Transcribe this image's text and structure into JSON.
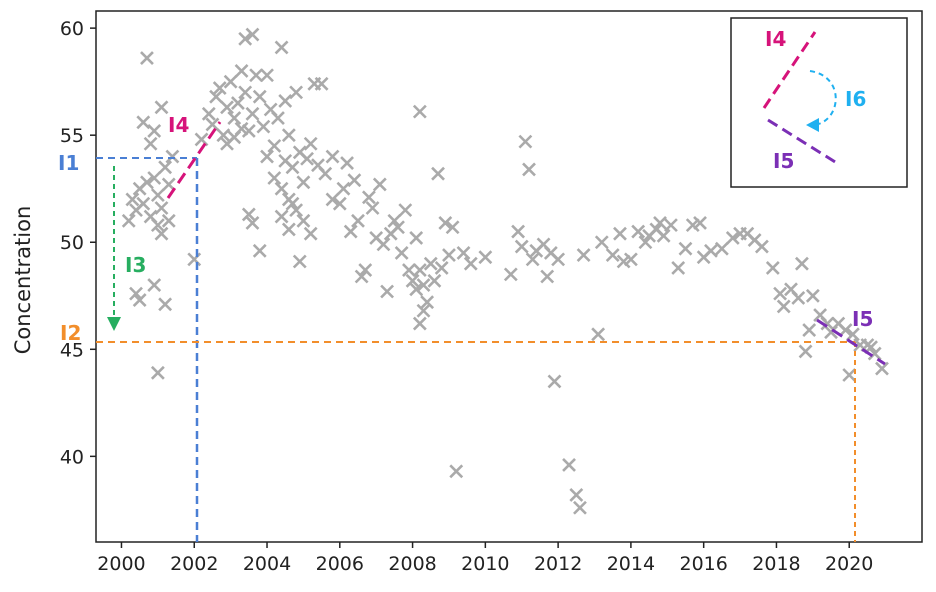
{
  "chart_data": {
    "type": "scatter",
    "title": "",
    "xlabel": "",
    "ylabel": "Concentration",
    "xlim": [
      1999.3,
      2022.0
    ],
    "ylim": [
      36.0,
      60.8
    ],
    "xticks": [
      2000,
      2002,
      2004,
      2006,
      2008,
      2010,
      2012,
      2014,
      2016,
      2018,
      2020
    ],
    "yticks": [
      40,
      45,
      50,
      55,
      60
    ],
    "grid": false,
    "marker": "x",
    "marker_color": "#aaaaaa",
    "series": [
      {
        "points": [
          [
            2000.2,
            51.0
          ],
          [
            2000.3,
            52.0
          ],
          [
            2000.4,
            51.5
          ],
          [
            2000.5,
            52.5
          ],
          [
            2000.6,
            51.8
          ],
          [
            2000.7,
            52.8
          ],
          [
            2000.8,
            51.2
          ],
          [
            2000.9,
            53.0
          ],
          [
            2001.0,
            52.2
          ],
          [
            2001.1,
            51.6
          ],
          [
            2001.2,
            53.5
          ],
          [
            2001.3,
            52.7
          ],
          [
            2001.4,
            54.0
          ],
          [
            2000.6,
            55.6
          ],
          [
            2000.7,
            58.6
          ],
          [
            2000.9,
            55.2
          ],
          [
            2001.1,
            56.3
          ],
          [
            2001.0,
            43.9
          ],
          [
            2001.2,
            47.1
          ],
          [
            2000.5,
            47.3
          ],
          [
            2000.4,
            47.6
          ],
          [
            2000.9,
            48.0
          ],
          [
            2001.1,
            50.4
          ],
          [
            2000.8,
            54.6
          ],
          [
            2001.0,
            50.8
          ],
          [
            2001.3,
            51.0
          ],
          [
            2002.0,
            49.2
          ],
          [
            2002.2,
            54.8
          ],
          [
            2002.4,
            56.0
          ],
          [
            2002.5,
            55.5
          ],
          [
            2002.6,
            56.8
          ],
          [
            2002.7,
            57.2
          ],
          [
            2002.8,
            55.0
          ],
          [
            2002.9,
            56.3
          ],
          [
            2003.0,
            57.5
          ],
          [
            2003.1,
            55.8
          ],
          [
            2003.2,
            56.5
          ],
          [
            2003.3,
            58.0
          ],
          [
            2003.4,
            57.0
          ],
          [
            2003.5,
            55.2
          ],
          [
            2003.6,
            56.0
          ],
          [
            2003.7,
            57.8
          ],
          [
            2003.4,
            59.5
          ],
          [
            2003.6,
            59.7
          ],
          [
            2003.8,
            56.8
          ],
          [
            2003.9,
            55.4
          ],
          [
            2004.0,
            57.8
          ],
          [
            2004.1,
            56.2
          ],
          [
            2004.2,
            54.5
          ],
          [
            2004.3,
            55.8
          ],
          [
            2004.4,
            59.1
          ],
          [
            2004.5,
            56.6
          ],
          [
            2004.6,
            55.0
          ],
          [
            2003.5,
            51.3
          ],
          [
            2003.6,
            50.9
          ],
          [
            2003.8,
            49.6
          ],
          [
            2002.9,
            54.6
          ],
          [
            2003.1,
            54.9
          ],
          [
            2003.3,
            55.3
          ],
          [
            2004.0,
            54.0
          ],
          [
            2004.2,
            53.0
          ],
          [
            2004.4,
            52.5
          ],
          [
            2004.5,
            53.8
          ],
          [
            2004.6,
            52.0
          ],
          [
            2004.7,
            53.5
          ],
          [
            2004.8,
            51.5
          ],
          [
            2004.9,
            54.2
          ],
          [
            2005.0,
            52.8
          ],
          [
            2005.1,
            53.9
          ],
          [
            2005.2,
            54.6
          ],
          [
            2005.3,
            57.4
          ],
          [
            2005.4,
            53.6
          ],
          [
            2004.8,
            57.0
          ],
          [
            2005.5,
            57.4
          ],
          [
            2005.6,
            53.2
          ],
          [
            2005.8,
            54.0
          ],
          [
            2004.4,
            51.2
          ],
          [
            2004.6,
            50.6
          ],
          [
            2004.9,
            49.1
          ],
          [
            2005.2,
            50.4
          ],
          [
            2004.7,
            51.8
          ],
          [
            2005.0,
            51.0
          ],
          [
            2005.8,
            52.0
          ],
          [
            2006.0,
            51.8
          ],
          [
            2006.1,
            52.5
          ],
          [
            2006.2,
            53.7
          ],
          [
            2006.3,
            50.5
          ],
          [
            2006.4,
            52.9
          ],
          [
            2006.5,
            51.0
          ],
          [
            2006.6,
            48.4
          ],
          [
            2006.7,
            48.7
          ],
          [
            2006.8,
            52.1
          ],
          [
            2006.9,
            51.6
          ],
          [
            2007.0,
            50.2
          ],
          [
            2007.1,
            52.7
          ],
          [
            2007.2,
            49.9
          ],
          [
            2007.3,
            47.7
          ],
          [
            2007.4,
            50.4
          ],
          [
            2007.5,
            51.0
          ],
          [
            2007.6,
            50.7
          ],
          [
            2007.7,
            49.5
          ],
          [
            2007.8,
            51.5
          ],
          [
            2007.9,
            48.7
          ],
          [
            2008.0,
            48.2
          ],
          [
            2008.1,
            47.8
          ],
          [
            2008.2,
            48.7
          ],
          [
            2008.3,
            48.0
          ],
          [
            2008.4,
            47.2
          ],
          [
            2008.5,
            49.0
          ],
          [
            2008.2,
            46.2
          ],
          [
            2008.3,
            46.8
          ],
          [
            2008.1,
            50.2
          ],
          [
            2008.2,
            56.1
          ],
          [
            2008.6,
            48.2
          ],
          [
            2008.8,
            48.8
          ],
          [
            2008.7,
            53.2
          ],
          [
            2008.9,
            50.9
          ],
          [
            2009.0,
            49.4
          ],
          [
            2009.2,
            39.3
          ],
          [
            2009.1,
            50.7
          ],
          [
            2009.4,
            49.5
          ],
          [
            2009.6,
            49.0
          ],
          [
            2010.0,
            49.3
          ],
          [
            2010.7,
            48.5
          ],
          [
            2010.9,
            50.5
          ],
          [
            2011.0,
            49.8
          ],
          [
            2011.1,
            54.7
          ],
          [
            2011.2,
            53.4
          ],
          [
            2011.3,
            49.2
          ],
          [
            2011.4,
            49.6
          ],
          [
            2011.6,
            49.9
          ],
          [
            2011.7,
            48.4
          ],
          [
            2011.8,
            49.5
          ],
          [
            2011.9,
            43.5
          ],
          [
            2012.0,
            49.2
          ],
          [
            2012.3,
            39.6
          ],
          [
            2012.5,
            38.2
          ],
          [
            2012.6,
            37.6
          ],
          [
            2012.7,
            49.4
          ],
          [
            2013.1,
            45.7
          ],
          [
            2013.2,
            50.0
          ],
          [
            2013.5,
            49.4
          ],
          [
            2013.7,
            50.4
          ],
          [
            2013.8,
            49.1
          ],
          [
            2014.0,
            49.2
          ],
          [
            2014.2,
            50.5
          ],
          [
            2014.4,
            50.0
          ],
          [
            2014.5,
            50.3
          ],
          [
            2014.7,
            50.6
          ],
          [
            2014.8,
            50.9
          ],
          [
            2014.9,
            50.3
          ],
          [
            2015.1,
            50.8
          ],
          [
            2015.3,
            48.8
          ],
          [
            2015.5,
            49.7
          ],
          [
            2015.7,
            50.8
          ],
          [
            2015.9,
            50.9
          ],
          [
            2016.0,
            49.3
          ],
          [
            2016.2,
            49.6
          ],
          [
            2016.5,
            49.7
          ],
          [
            2016.8,
            50.2
          ],
          [
            2017.0,
            50.4
          ],
          [
            2017.2,
            50.4
          ],
          [
            2017.4,
            50.1
          ],
          [
            2017.6,
            49.8
          ],
          [
            2017.9,
            48.8
          ],
          [
            2018.1,
            47.6
          ],
          [
            2018.2,
            47.0
          ],
          [
            2018.4,
            47.8
          ],
          [
            2018.6,
            47.4
          ],
          [
            2018.7,
            49.0
          ],
          [
            2018.8,
            44.9
          ],
          [
            2018.9,
            45.9
          ],
          [
            2019.0,
            47.5
          ],
          [
            2019.2,
            46.6
          ],
          [
            2019.4,
            46.2
          ],
          [
            2019.5,
            45.8
          ],
          [
            2019.7,
            46.2
          ],
          [
            2019.9,
            45.9
          ],
          [
            2020.0,
            43.8
          ],
          [
            2020.1,
            45.7
          ],
          [
            2020.3,
            45.2
          ],
          [
            2020.5,
            45.2
          ],
          [
            2020.6,
            45.1
          ],
          [
            2020.7,
            44.8
          ],
          [
            2020.9,
            44.1
          ]
        ]
      }
    ],
    "annotations": [
      {
        "label": "I1",
        "color": "#4a7fd4",
        "note": "reference lines at x = 2002 and y = 54"
      },
      {
        "label": "I2",
        "color": "#f28e2b",
        "note": "reference lines at y = 45.7 and x = 2020"
      },
      {
        "label": "I3",
        "color": "#27ae60",
        "note": "downward arrow from 54 to 46.5"
      },
      {
        "label": "I4",
        "color": "#d6137a",
        "note": "rising trend segment"
      },
      {
        "label": "I5",
        "color": "#7b2fb5",
        "note": "falling trend segment"
      },
      {
        "label": "I6",
        "color": "#1fb0f0",
        "note": "rotation arrow in legend box"
      }
    ],
    "legend": {
      "placement": "top-right",
      "items": [
        {
          "label": "I4",
          "color": "#d6137a"
        },
        {
          "label": "I6",
          "color": "#1fb0f0"
        },
        {
          "label": "I5",
          "color": "#7b2fb5"
        }
      ]
    }
  }
}
